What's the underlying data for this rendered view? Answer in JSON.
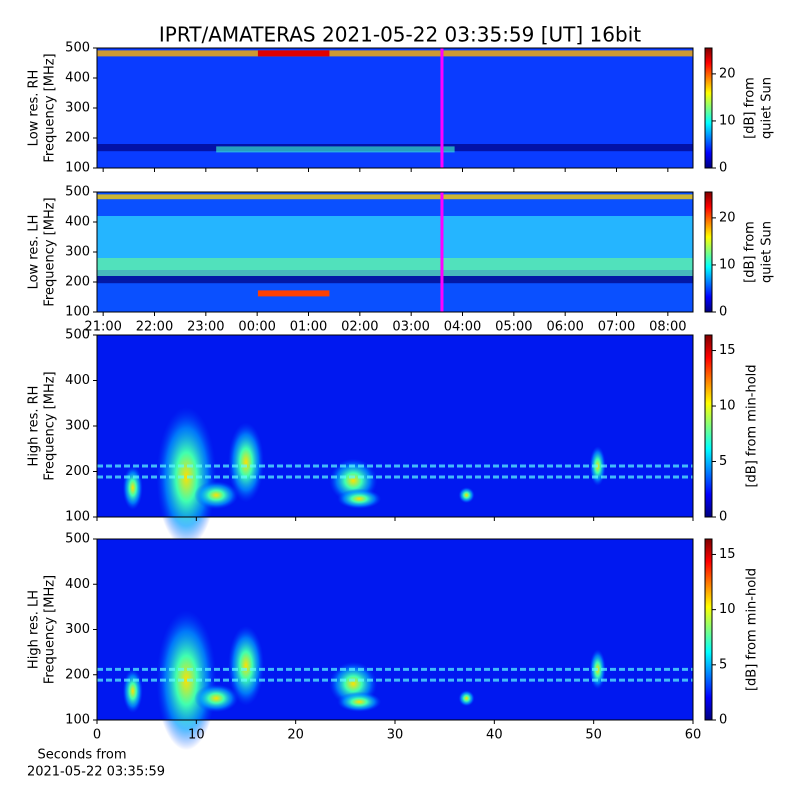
{
  "chart_data": [
    {
      "type": "heatmap",
      "title": "IPRT/AMATERAS 2021-05-22 03:35:59 [UT]   16bit",
      "ylabel": [
        "Low res. RH",
        "Frequency [MHz]"
      ],
      "ylim": [
        100,
        500
      ],
      "yticks": [
        100,
        200,
        300,
        400,
        500
      ],
      "xlim": [
        20.88,
        32.49
      ],
      "xticks": [
        21,
        22,
        23,
        24,
        25,
        26,
        27,
        28,
        29,
        30,
        31,
        32
      ],
      "tick_labels": false,
      "marker_x": 27.6,
      "marker_color": "#ff00ff",
      "clim": [
        0,
        25.5
      ],
      "cticks": [
        0,
        10,
        20
      ],
      "clabel": [
        "[dB] from",
        "quiet Sun"
      ]
    },
    {
      "type": "heatmap",
      "ylabel": [
        "Low res. LH",
        "Frequency [MHz]"
      ],
      "ylim": [
        100,
        500
      ],
      "yticks": [
        100,
        200,
        300,
        400,
        500
      ],
      "xlim": [
        20.88,
        32.49
      ],
      "xticks": [
        {
          "value": 21,
          "label": "21:00"
        },
        {
          "value": 22,
          "label": "22:00"
        },
        {
          "value": 23,
          "label": "23:00"
        },
        {
          "value": 24,
          "label": "00:00"
        },
        {
          "value": 25,
          "label": "01:00"
        },
        {
          "value": 26,
          "label": "02:00"
        },
        {
          "value": 27,
          "label": "03:00"
        },
        {
          "value": 28,
          "label": "04:00"
        },
        {
          "value": 29,
          "label": "05:00"
        },
        {
          "value": 30,
          "label": "06:00"
        },
        {
          "value": 31,
          "label": "07:00"
        },
        {
          "value": 32,
          "label": "08:00"
        }
      ],
      "tick_labels": true,
      "marker_x": 27.6,
      "marker_color": "#ff00ff",
      "clim": [
        0,
        25.5
      ],
      "cticks": [
        0,
        10,
        20
      ],
      "clabel": [
        "[dB] from",
        "quiet Sun"
      ]
    },
    {
      "type": "heatmap",
      "ylabel": [
        "High res. RH",
        "Frequency [MHz]"
      ],
      "ylim": [
        100,
        500
      ],
      "yticks": [
        100,
        200,
        300,
        400,
        500
      ],
      "xlim": [
        0,
        60
      ],
      "xticks": [
        0,
        10,
        20,
        30,
        40,
        50,
        60
      ],
      "tick_labels": false,
      "clim": [
        0,
        16.4
      ],
      "cticks": [
        0,
        5,
        10,
        15
      ],
      "clabel": [
        "[dB] from min-hold"
      ]
    },
    {
      "type": "heatmap",
      "ylabel": [
        "High res. LH",
        "Frequency [MHz]"
      ],
      "ylim": [
        100,
        500
      ],
      "yticks": [
        100,
        200,
        300,
        400,
        500
      ],
      "xlim": [
        0,
        60
      ],
      "xticks": [
        0,
        10,
        20,
        30,
        40,
        50,
        60
      ],
      "tick_labels": true,
      "xlabel": [
        "Seconds from",
        "2021-05-22 03:35:59"
      ],
      "clim": [
        0,
        16.4
      ],
      "cticks": [
        0,
        5,
        10,
        15
      ],
      "clabel": [
        "[dB] from min-hold"
      ]
    }
  ]
}
